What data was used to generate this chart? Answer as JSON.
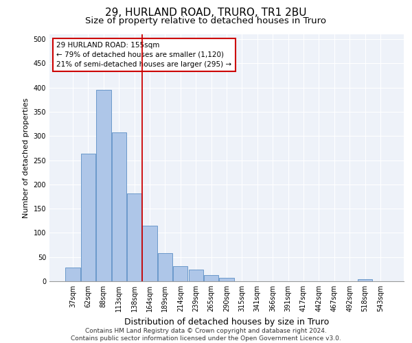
{
  "title": "29, HURLAND ROAD, TRURO, TR1 2BU",
  "subtitle": "Size of property relative to detached houses in Truro",
  "xlabel": "Distribution of detached houses by size in Truro",
  "ylabel": "Number of detached properties",
  "bar_labels": [
    "37sqm",
    "62sqm",
    "88sqm",
    "113sqm",
    "138sqm",
    "164sqm",
    "189sqm",
    "214sqm",
    "239sqm",
    "265sqm",
    "290sqm",
    "315sqm",
    "341sqm",
    "366sqm",
    "391sqm",
    "417sqm",
    "442sqm",
    "467sqm",
    "492sqm",
    "518sqm",
    "543sqm"
  ],
  "bar_values": [
    28,
    264,
    395,
    308,
    181,
    115,
    58,
    31,
    24,
    13,
    7,
    0,
    0,
    0,
    0,
    0,
    0,
    0,
    0,
    4,
    0
  ],
  "bar_color": "#aec6e8",
  "bar_edge_color": "#5b8ec4",
  "vline_x": 4.5,
  "vline_color": "#cc0000",
  "annotation_text": "29 HURLAND ROAD: 155sqm\n← 79% of detached houses are smaller (1,120)\n21% of semi-detached houses are larger (295) →",
  "annotation_box_color": "#ffffff",
  "annotation_box_edge": "#cc0000",
  "ylim": [
    0,
    510
  ],
  "yticks": [
    0,
    50,
    100,
    150,
    200,
    250,
    300,
    350,
    400,
    450,
    500
  ],
  "bg_color": "#eef2f9",
  "footer": "Contains HM Land Registry data © Crown copyright and database right 2024.\nContains public sector information licensed under the Open Government Licence v3.0.",
  "title_fontsize": 11,
  "subtitle_fontsize": 9.5,
  "xlabel_fontsize": 9,
  "ylabel_fontsize": 8,
  "footer_fontsize": 6.5,
  "tick_fontsize": 7,
  "annot_fontsize": 7.5
}
